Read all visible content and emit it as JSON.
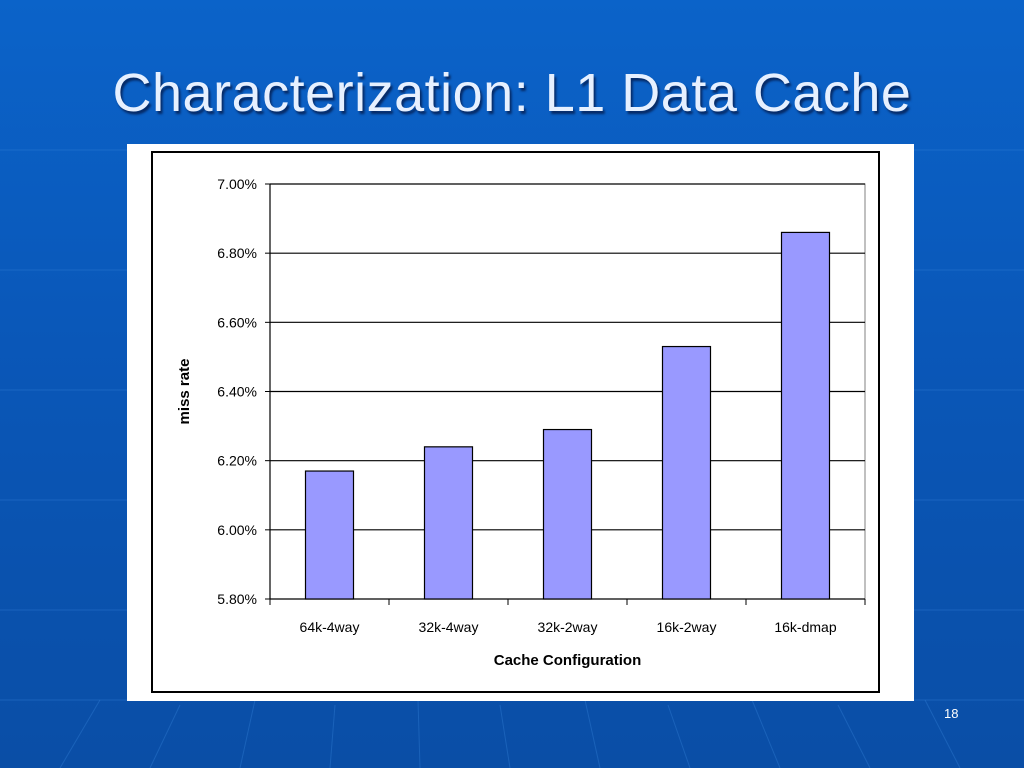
{
  "slide": {
    "title": "Characterization: L1 Data Cache",
    "page_number": "18"
  },
  "chart_data": {
    "type": "bar",
    "title": "",
    "xlabel": "Cache Configuration",
    "ylabel": "miss rate",
    "categories": [
      "64k-4way",
      "32k-4way",
      "32k-2way",
      "16k-2way",
      "16k-dmap"
    ],
    "values": [
      6.17,
      6.24,
      6.29,
      6.53,
      6.86
    ],
    "ylim": [
      5.8,
      7.0
    ],
    "yticks": [
      5.8,
      6.0,
      6.2,
      6.4,
      6.6,
      6.8,
      7.0
    ],
    "ytick_labels": [
      "5.80%",
      "6.00%",
      "6.20%",
      "6.40%",
      "6.60%",
      "6.80%",
      "7.00%"
    ],
    "grid": true,
    "legend": "none",
    "colors": {
      "bar": "#9999ff",
      "bar_edge": "#000000",
      "grid": "#000000"
    }
  }
}
